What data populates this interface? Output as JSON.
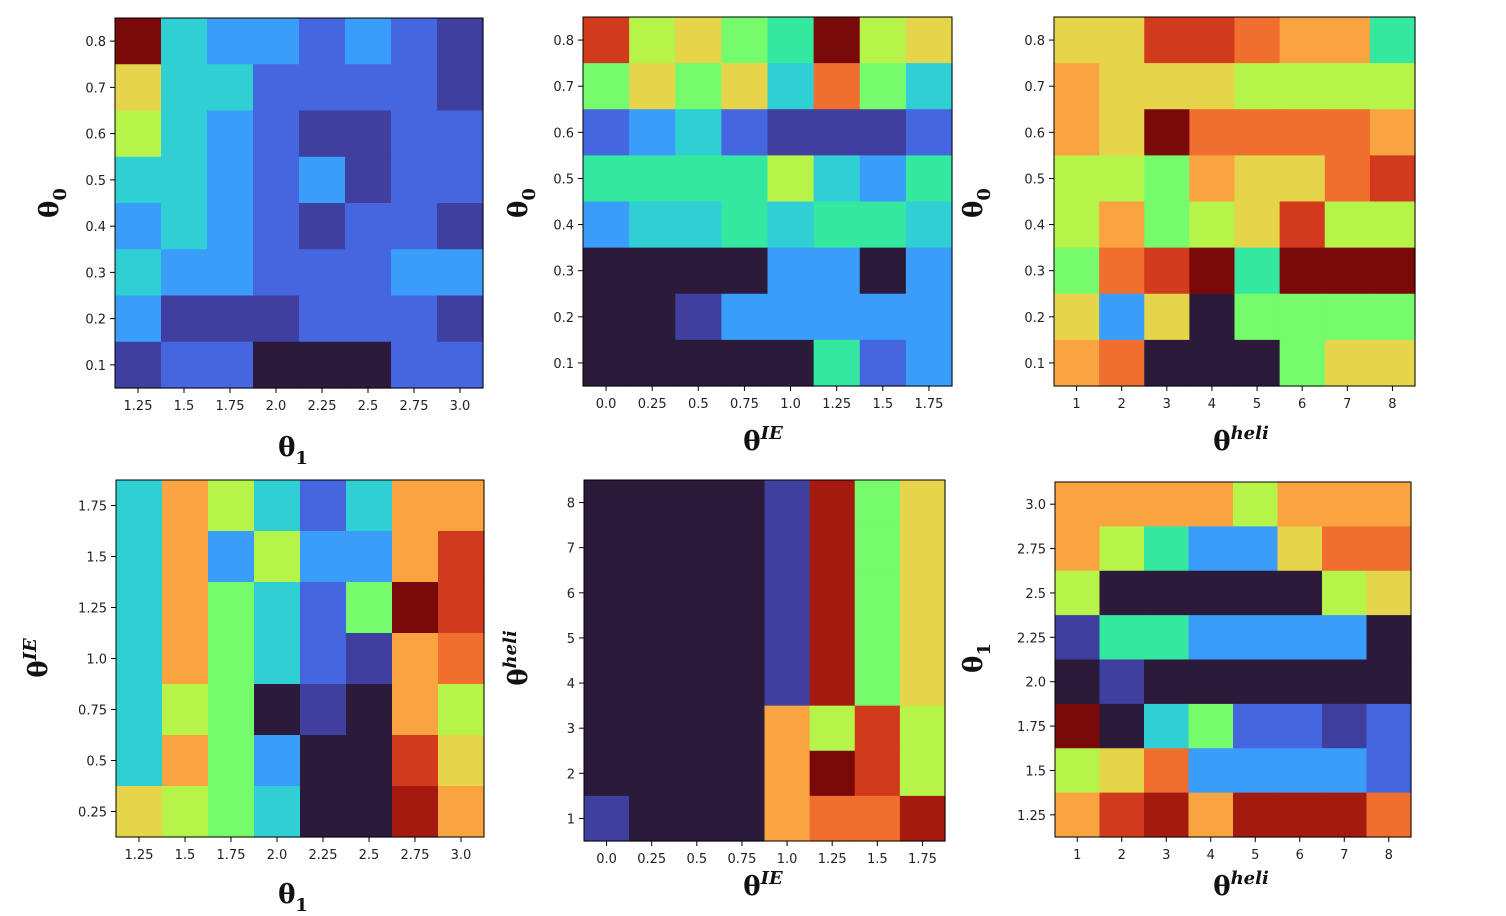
{
  "figure": {
    "description_free": true
  },
  "palette": [
    "#2b1a3a",
    "#3e3f9e",
    "#4666e0",
    "#3b9dfa",
    "#2fcfd4",
    "#35e8a0",
    "#75fb6c",
    "#b7f44a",
    "#e6d54a",
    "#f9a440",
    "#f06e2e",
    "#d13a1c",
    "#a51a0e",
    "#7a0a0a"
  ],
  "chart_data": [
    {
      "type": "heatmap",
      "id": "p1",
      "xlabel": {
        "base": "θ",
        "sub": "1",
        "sup": ""
      },
      "ylabel": {
        "base": "θ",
        "sub": "0",
        "sup": ""
      },
      "xticks": [
        "1.25",
        "1.5",
        "1.75",
        "2.0",
        "2.25",
        "2.5",
        "2.75",
        "3.0"
      ],
      "yticks": [
        "0.8",
        "0.7",
        "0.6",
        "0.5",
        "0.4",
        "0.3",
        "0.2",
        "0.1"
      ],
      "cells": [
        [
          13,
          4,
          3,
          3,
          2,
          3,
          2,
          1
        ],
        [
          8,
          4,
          4,
          2,
          2,
          2,
          2,
          1
        ],
        [
          7,
          4,
          3,
          2,
          1,
          1,
          2,
          2
        ],
        [
          4,
          4,
          3,
          2,
          3,
          1,
          2,
          2
        ],
        [
          3,
          4,
          3,
          2,
          1,
          2,
          2,
          1
        ],
        [
          4,
          3,
          3,
          2,
          2,
          2,
          3,
          3
        ],
        [
          3,
          1,
          1,
          1,
          2,
          2,
          2,
          1
        ],
        [
          1,
          2,
          2,
          0,
          0,
          0,
          2,
          2
        ]
      ]
    },
    {
      "type": "heatmap",
      "id": "p2",
      "xlabel": {
        "base": "θ",
        "sub": "",
        "sup": "IE"
      },
      "ylabel": {
        "base": "θ",
        "sub": "0",
        "sup": ""
      },
      "xticks": [
        "0.0",
        "0.25",
        "0.5",
        "0.75",
        "1.0",
        "1.25",
        "1.5",
        "1.75"
      ],
      "yticks": [
        "0.8",
        "0.7",
        "0.6",
        "0.5",
        "0.4",
        "0.3",
        "0.2",
        "0.1"
      ],
      "cells": [
        [
          11,
          7,
          8,
          6,
          5,
          13,
          7,
          8
        ],
        [
          6,
          8,
          6,
          8,
          4,
          10,
          6,
          4
        ],
        [
          2,
          3,
          4,
          2,
          1,
          1,
          1,
          2
        ],
        [
          5,
          5,
          5,
          5,
          7,
          4,
          3,
          5
        ],
        [
          3,
          4,
          4,
          5,
          4,
          5,
          5,
          4
        ],
        [
          0,
          0,
          0,
          0,
          3,
          3,
          0,
          3
        ],
        [
          0,
          0,
          1,
          3,
          3,
          3,
          3,
          3
        ],
        [
          0,
          0,
          0,
          0,
          0,
          5,
          2,
          3
        ]
      ]
    },
    {
      "type": "heatmap",
      "id": "p3",
      "xlabel": {
        "base": "θ",
        "sub": "",
        "sup": "heli"
      },
      "ylabel": {
        "base": "θ",
        "sub": "0",
        "sup": ""
      },
      "xticks": [
        "1",
        "2",
        "3",
        "4",
        "5",
        "6",
        "7",
        "8"
      ],
      "yticks": [
        "0.8",
        "0.7",
        "0.6",
        "0.5",
        "0.4",
        "0.3",
        "0.2",
        "0.1"
      ],
      "cells": [
        [
          8,
          8,
          11,
          11,
          10,
          9,
          9,
          5
        ],
        [
          9,
          8,
          8,
          8,
          7,
          7,
          7,
          7
        ],
        [
          9,
          8,
          13,
          10,
          10,
          10,
          10,
          9
        ],
        [
          7,
          7,
          6,
          9,
          8,
          8,
          10,
          11
        ],
        [
          7,
          9,
          6,
          7,
          8,
          11,
          7,
          7
        ],
        [
          6,
          10,
          11,
          13,
          5,
          13,
          13,
          13
        ],
        [
          8,
          3,
          8,
          0,
          6,
          6,
          6,
          6
        ],
        [
          9,
          10,
          0,
          0,
          0,
          6,
          8,
          8
        ]
      ]
    },
    {
      "type": "heatmap",
      "id": "p4",
      "xlabel": {
        "base": "θ",
        "sub": "1",
        "sup": ""
      },
      "ylabel": {
        "base": "θ",
        "sub": "",
        "sup": "IE"
      },
      "xticks": [
        "1.25",
        "1.5",
        "1.75",
        "2.0",
        "2.25",
        "2.5",
        "2.75",
        "3.0"
      ],
      "yticks": [
        "1.75",
        "1.5",
        "1.25",
        "1.0",
        "0.75",
        "0.5",
        "0.25"
      ],
      "cells": [
        [
          4,
          9,
          7,
          4,
          2,
          4,
          9,
          9
        ],
        [
          4,
          9,
          3,
          7,
          3,
          3,
          9,
          11
        ],
        [
          4,
          9,
          6,
          4,
          2,
          6,
          13,
          11
        ],
        [
          4,
          9,
          6,
          4,
          2,
          1,
          9,
          10
        ],
        [
          4,
          7,
          6,
          0,
          1,
          0,
          9,
          7
        ],
        [
          4,
          9,
          6,
          3,
          0,
          0,
          11,
          8
        ],
        [
          8,
          7,
          6,
          4,
          0,
          0,
          12,
          9
        ]
      ]
    },
    {
      "type": "heatmap",
      "id": "p5",
      "xlabel": {
        "base": "θ",
        "sub": "",
        "sup": "IE"
      },
      "ylabel": {
        "base": "θ",
        "sub": "",
        "sup": "heli"
      },
      "xticks": [
        "0.0",
        "0.25",
        "0.5",
        "0.75",
        "1.0",
        "1.25",
        "1.5",
        "1.75"
      ],
      "yticks": [
        "8",
        "7",
        "6",
        "5",
        "4",
        "3",
        "2",
        "1"
      ],
      "cells": [
        [
          0,
          0,
          0,
          0,
          1,
          12,
          6,
          8
        ],
        [
          0,
          0,
          0,
          0,
          1,
          12,
          6,
          8
        ],
        [
          0,
          0,
          0,
          0,
          1,
          12,
          6,
          8
        ],
        [
          0,
          0,
          0,
          0,
          1,
          12,
          6,
          8
        ],
        [
          0,
          0,
          0,
          0,
          1,
          12,
          6,
          8
        ],
        [
          0,
          0,
          0,
          0,
          9,
          7,
          11,
          7
        ],
        [
          0,
          0,
          0,
          0,
          9,
          13,
          11,
          7
        ],
        [
          1,
          0,
          0,
          0,
          9,
          10,
          10,
          12
        ]
      ]
    },
    {
      "type": "heatmap",
      "id": "p6",
      "xlabel": {
        "base": "θ",
        "sub": "",
        "sup": "heli"
      },
      "ylabel": {
        "base": "θ",
        "sub": "1",
        "sup": ""
      },
      "xticks": [
        "1",
        "2",
        "3",
        "4",
        "5",
        "6",
        "7",
        "8"
      ],
      "yticks": [
        "3.0",
        "2.75",
        "2.5",
        "2.25",
        "2.0",
        "1.75",
        "1.5",
        "1.25"
      ],
      "cells": [
        [
          9,
          9,
          9,
          9,
          7,
          9,
          9,
          9
        ],
        [
          9,
          7,
          5,
          3,
          3,
          8,
          10,
          10
        ],
        [
          7,
          0,
          0,
          0,
          0,
          0,
          7,
          8
        ],
        [
          1,
          5,
          5,
          3,
          3,
          3,
          3,
          0
        ],
        [
          0,
          1,
          0,
          0,
          0,
          0,
          0,
          0
        ],
        [
          13,
          0,
          4,
          6,
          2,
          2,
          1,
          2
        ],
        [
          7,
          8,
          10,
          3,
          3,
          3,
          3,
          2
        ],
        [
          9,
          11,
          12,
          9,
          12,
          12,
          12,
          10
        ]
      ]
    }
  ]
}
